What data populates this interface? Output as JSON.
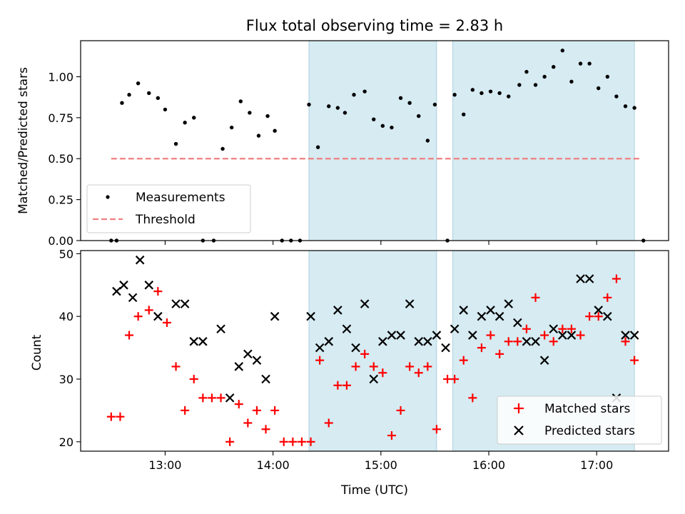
{
  "chart_data": [
    {
      "type": "scatter",
      "title": "Flux total observing time = 2.83 h",
      "xlabel": "",
      "ylabel": "Matched/Predicted stars",
      "ylim": [
        0,
        1.22
      ],
      "yticks": [
        "0.00",
        "0.25",
        "0.50",
        "0.75",
        "1.00"
      ],
      "grid": false,
      "legend_position": "lower-left",
      "legend": [
        "Measurements",
        "Threshold"
      ],
      "threshold": {
        "name": "Threshold",
        "value": 0.5,
        "x_range": [
          "12:30",
          "17:25"
        ],
        "color": "#f08080",
        "style": "dashed"
      },
      "shaded_intervals": [
        [
          "14:20",
          "15:31"
        ],
        [
          "15:40",
          "17:21"
        ]
      ],
      "series": [
        {
          "name": "Measurements",
          "color": "#000000",
          "x": [
            "12:30",
            "12:33",
            "12:36",
            "12:40",
            "12:45",
            "12:51",
            "12:56",
            "13:00",
            "13:06",
            "13:11",
            "13:16",
            "13:21",
            "13:27",
            "13:32",
            "13:37",
            "13:42",
            "13:47",
            "13:52",
            "13:57",
            "14:01",
            "14:05",
            "14:10",
            "14:15",
            "14:20",
            "14:25",
            "14:31",
            "14:36",
            "14:40",
            "14:45",
            "14:51",
            "14:56",
            "15:01",
            "15:06",
            "15:11",
            "15:16",
            "15:21",
            "15:26",
            "15:30",
            "15:37",
            "15:41",
            "15:46",
            "15:51",
            "15:56",
            "16:01",
            "16:06",
            "16:11",
            "16:17",
            "16:21",
            "16:26",
            "16:31",
            "16:36",
            "16:41",
            "16:46",
            "16:51",
            "16:56",
            "17:01",
            "17:06",
            "17:11",
            "17:16",
            "17:21",
            "17:26"
          ],
          "y": [
            0.0,
            0.0,
            0.84,
            0.89,
            0.96,
            0.9,
            0.87,
            0.8,
            0.59,
            0.72,
            0.75,
            0.0,
            0.0,
            0.56,
            0.69,
            0.85,
            0.78,
            0.64,
            0.76,
            0.67,
            0.0,
            0.0,
            0.0,
            0.83,
            0.57,
            0.82,
            0.81,
            0.78,
            0.89,
            0.91,
            0.74,
            0.7,
            0.69,
            0.87,
            0.84,
            0.76,
            0.61,
            0.83,
            0.0,
            0.89,
            0.77,
            0.92,
            0.9,
            0.91,
            0.9,
            0.88,
            0.95,
            1.03,
            0.95,
            1.0,
            1.06,
            1.16,
            0.97,
            1.08,
            1.08,
            0.93,
            1.0,
            0.88,
            0.82,
            0.81,
            0.0
          ]
        }
      ]
    },
    {
      "type": "scatter",
      "title": "",
      "xlabel": "Time (UTC)",
      "ylabel": "Count",
      "ylim": [
        18.5,
        50.5
      ],
      "yticks": [
        "20",
        "30",
        "40",
        "50"
      ],
      "xlim": [
        "12:13",
        "17:40"
      ],
      "xticks": [
        "13:00",
        "14:00",
        "15:00",
        "16:00",
        "17:00"
      ],
      "grid": false,
      "legend_position": "lower-right",
      "legend": [
        "Matched stars",
        "Predicted stars"
      ],
      "shaded_intervals": [
        [
          "14:20",
          "15:31"
        ],
        [
          "15:40",
          "17:21"
        ]
      ],
      "series": [
        {
          "name": "Matched stars",
          "marker": "+",
          "color": "#ff0000",
          "x": [
            "12:30",
            "12:35",
            "12:40",
            "12:45",
            "12:51",
            "12:56",
            "13:01",
            "13:06",
            "13:11",
            "13:16",
            "13:21",
            "13:26",
            "13:31",
            "13:36",
            "13:41",
            "13:46",
            "13:51",
            "13:56",
            "14:01",
            "14:06",
            "14:11",
            "14:16",
            "14:21",
            "14:26",
            "14:31",
            "14:36",
            "14:41",
            "14:46",
            "14:51",
            "14:56",
            "15:01",
            "15:06",
            "15:11",
            "15:16",
            "15:21",
            "15:26",
            "15:31",
            "15:37",
            "15:41",
            "15:46",
            "15:51",
            "15:56",
            "16:01",
            "16:06",
            "16:11",
            "16:16",
            "16:21",
            "16:26",
            "16:31",
            "16:36",
            "16:41",
            "16:46",
            "16:51",
            "16:56",
            "17:01",
            "17:06",
            "17:11",
            "17:16",
            "17:21"
          ],
          "y": [
            24,
            24,
            37,
            40,
            41,
            44,
            39,
            32,
            25,
            30,
            27,
            27,
            27,
            20,
            26,
            23,
            25,
            22,
            25,
            20,
            20,
            20,
            20,
            33,
            23,
            29,
            29,
            32,
            34,
            32,
            31,
            21,
            25,
            32,
            31,
            32,
            22,
            30,
            30,
            33,
            27,
            35,
            37,
            34,
            36,
            36,
            38,
            43,
            37,
            36,
            38,
            38,
            37,
            40,
            40,
            43,
            46,
            36,
            33
          ]
        },
        {
          "name": "Predicted stars",
          "marker": "x",
          "color": "#000000",
          "x": [
            "12:33",
            "12:37",
            "12:42",
            "12:46",
            "12:51",
            "12:56",
            "13:06",
            "13:11",
            "13:16",
            "13:21",
            "13:31",
            "13:36",
            "13:41",
            "13:46",
            "13:51",
            "13:56",
            "14:01",
            "14:21",
            "14:26",
            "14:31",
            "14:36",
            "14:41",
            "14:46",
            "14:51",
            "14:56",
            "15:01",
            "15:06",
            "15:11",
            "15:16",
            "15:21",
            "15:26",
            "15:31",
            "15:36",
            "15:41",
            "15:46",
            "15:51",
            "15:56",
            "16:01",
            "16:06",
            "16:11",
            "16:16",
            "16:21",
            "16:26",
            "16:31",
            "16:36",
            "16:41",
            "16:46",
            "16:51",
            "16:56",
            "17:01",
            "17:06",
            "17:11",
            "17:16",
            "17:21"
          ],
          "y": [
            44,
            45,
            43,
            49,
            45,
            40,
            42,
            42,
            36,
            36,
            38,
            27,
            32,
            34,
            33,
            30,
            40,
            40,
            35,
            36,
            41,
            38,
            35,
            42,
            30,
            36,
            37,
            37,
            42,
            36,
            36,
            37,
            35,
            38,
            41,
            37,
            40,
            41,
            40,
            42,
            39,
            36,
            36,
            33,
            38,
            37,
            37,
            46,
            46,
            41,
            40,
            27,
            37,
            37
          ]
        }
      ]
    }
  ]
}
